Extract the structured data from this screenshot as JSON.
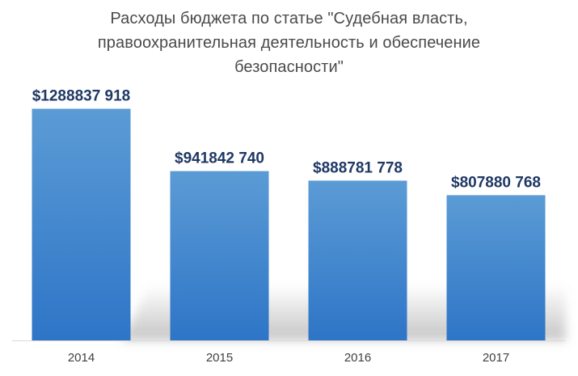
{
  "chart_data": {
    "type": "bar",
    "title_lines": [
      "Расходы бюджета по статье \"Судебная власть,",
      "правоохранительная деятельность и обеспечение",
      "безопасности\""
    ],
    "categories": [
      "2014",
      "2015",
      "2016",
      "2017"
    ],
    "values": [
      1288837918,
      941842740,
      888781778,
      807880768
    ],
    "value_labels": [
      "$1288837 918",
      "$941842 740",
      "$888781 778",
      "$807880 768"
    ],
    "xlabel": "",
    "ylabel": "",
    "ylim": [
      0,
      1300000000
    ],
    "grid": false,
    "legend": "none",
    "colors": {
      "bar_top": "#5b9bd5",
      "bar_bottom": "#2e75c7",
      "value_label": "#1f3864",
      "tick_label": "#404040",
      "baseline": "#d9d9d9",
      "shadow": "#7f7f7f",
      "title": "#4a4a4a"
    }
  }
}
